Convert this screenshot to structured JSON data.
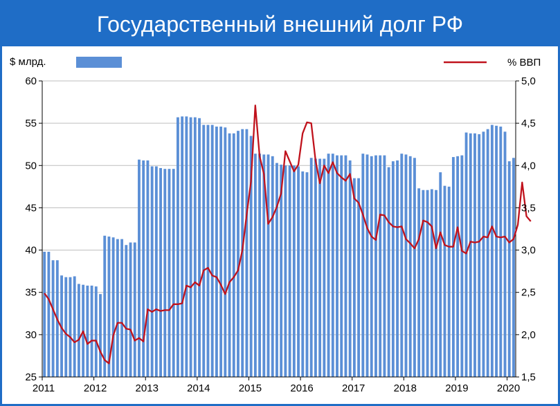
{
  "title": "Государственный внешний долг РФ",
  "chart_data": {
    "type": "bar+line",
    "left_axis_label": "$ млрд.",
    "right_axis_label": "% ВВП",
    "left_ylim": [
      25,
      60
    ],
    "right_ylim": [
      1.5,
      5.0
    ],
    "left_ticks": [
      "25",
      "30",
      "35",
      "40",
      "45",
      "50",
      "55",
      "60"
    ],
    "right_ticks": [
      "1,5",
      "2,0",
      "2,5",
      "3,0",
      "3,5",
      "4,0",
      "4,5",
      "5,0"
    ],
    "x_labels": [
      "2011",
      "2012",
      "2013",
      "2014",
      "2015",
      "2016",
      "2017",
      "2018",
      "2019",
      "2020"
    ],
    "months_per_year": 12,
    "colors": {
      "bars": "#5b8fd6",
      "line": "#c0121c",
      "frame": "#1f6dc6"
    },
    "series": [
      {
        "name": "$ млрд.",
        "values": [
          39.8,
          39.8,
          38.8,
          38.8,
          37.0,
          36.8,
          36.8,
          36.9,
          36.0,
          35.9,
          35.8,
          35.8,
          35.7,
          34.8,
          41.7,
          41.6,
          41.5,
          41.3,
          41.3,
          40.6,
          40.9,
          40.9,
          50.7,
          50.6,
          50.6,
          49.9,
          49.9,
          49.7,
          49.6,
          49.6,
          49.6,
          55.7,
          55.8,
          55.8,
          55.7,
          55.7,
          55.6,
          54.8,
          54.8,
          54.8,
          54.6,
          54.6,
          54.5,
          53.8,
          53.8,
          54.1,
          54.3,
          54.3,
          53.5,
          51.4,
          51.4,
          51.3,
          51.3,
          51.1,
          50.3,
          50.1,
          50.0,
          50.0,
          50.0,
          49.9,
          49.3,
          49.2,
          50.9,
          50.8,
          50.8,
          50.8,
          51.4,
          51.4,
          51.2,
          51.2,
          51.2,
          50.6,
          48.5,
          48.5,
          51.4,
          51.3,
          51.1,
          51.2,
          51.2,
          51.2,
          49.8,
          50.5,
          50.6,
          51.4,
          51.3,
          51.1,
          50.9,
          47.3,
          47.1,
          47.1,
          47.2,
          47.1,
          49.2,
          47.6,
          47.5,
          51.0,
          51.1,
          51.2,
          53.9,
          53.8,
          53.8,
          53.7,
          54.0,
          54.3,
          54.8,
          54.7,
          54.6,
          54.0,
          50.5,
          50.9
        ]
      },
      {
        "name": "% ВВП",
        "values": [
          2.49,
          2.42,
          2.3,
          2.18,
          2.08,
          2.01,
          1.97,
          1.91,
          1.94,
          2.04,
          1.89,
          1.93,
          1.93,
          1.8,
          1.7,
          1.66,
          1.99,
          2.14,
          2.14,
          2.07,
          2.06,
          1.93,
          1.96,
          1.92,
          2.3,
          2.27,
          2.3,
          2.28,
          2.29,
          2.29,
          2.36,
          2.36,
          2.37,
          2.58,
          2.56,
          2.62,
          2.58,
          2.76,
          2.79,
          2.7,
          2.68,
          2.59,
          2.48,
          2.62,
          2.68,
          2.76,
          3.0,
          3.42,
          3.81,
          4.71,
          4.11,
          3.9,
          3.31,
          3.39,
          3.51,
          3.67,
          4.17,
          4.05,
          3.93,
          4.01,
          4.38,
          4.51,
          4.5,
          4.06,
          3.79,
          4.0,
          3.91,
          4.04,
          3.91,
          3.86,
          3.82,
          3.9,
          3.61,
          3.56,
          3.42,
          3.26,
          3.16,
          3.12,
          3.42,
          3.41,
          3.33,
          3.28,
          3.27,
          3.28,
          3.13,
          3.08,
          3.02,
          3.13,
          3.35,
          3.33,
          3.28,
          3.02,
          3.21,
          3.06,
          3.04,
          3.04,
          3.27,
          2.99,
          2.96,
          3.1,
          3.09,
          3.1,
          3.16,
          3.15,
          3.28,
          3.16,
          3.15,
          3.16,
          3.09,
          3.13,
          3.3,
          3.8,
          3.4,
          3.34
        ]
      }
    ]
  }
}
